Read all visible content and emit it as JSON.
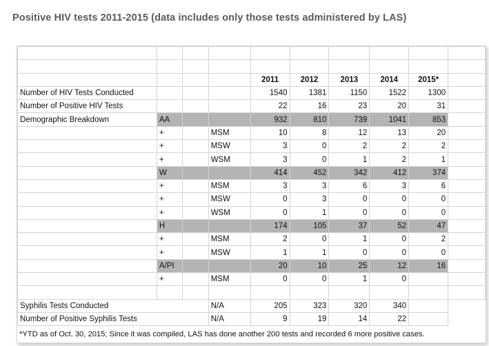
{
  "title": "Positive HIV tests 2011-2015 (data includes only those tests administered by LAS)",
  "years": [
    "2011",
    "2012",
    "2013",
    "2014",
    "2015*"
  ],
  "rows": [
    {
      "label": "Number of HIV Tests Conducted",
      "values": [
        "1540",
        "1381",
        "1150",
        "1522",
        "1300"
      ]
    },
    {
      "label": "Number of Positive HIV Tests",
      "values": [
        "22",
        "16",
        "23",
        "20",
        "31"
      ]
    },
    {
      "label": "Demographic Breakdown",
      "group": "AA",
      "values": [
        "932",
        "810",
        "739",
        "1041",
        "853"
      ]
    },
    {
      "plus": "+",
      "sub": "MSM",
      "values": [
        "10",
        "8",
        "12",
        "13",
        "20"
      ]
    },
    {
      "plus": "+",
      "sub": "MSW",
      "values": [
        "3",
        "0",
        "2",
        "2",
        "2"
      ]
    },
    {
      "plus": "+",
      "sub": "WSM",
      "values": [
        "3",
        "0",
        "1",
        "2",
        "1"
      ]
    },
    {
      "group": "W",
      "values": [
        "414",
        "452",
        "342",
        "412",
        "374"
      ]
    },
    {
      "plus": "+",
      "sub": "MSM",
      "values": [
        "3",
        "3",
        "6",
        "3",
        "6"
      ]
    },
    {
      "plus": "+",
      "sub": "MSW",
      "values": [
        "0",
        "3",
        "0",
        "0",
        "0"
      ]
    },
    {
      "plus": "+",
      "sub": "WSM",
      "values": [
        "0",
        "1",
        "0",
        "0",
        "0"
      ]
    },
    {
      "group": "H",
      "values": [
        "174",
        "105",
        "37",
        "52",
        "47"
      ]
    },
    {
      "plus": "+",
      "sub": "MSM",
      "values": [
        "2",
        "0",
        "1",
        "0",
        "2"
      ]
    },
    {
      "plus": "+",
      "sub": "MSW",
      "values": [
        "1",
        "1",
        "0",
        "0",
        "0"
      ]
    },
    {
      "group": "A/PI",
      "values": [
        "20",
        "10",
        "25",
        "12",
        "16"
      ]
    },
    {
      "plus": "+",
      "sub": "MSM",
      "values": [
        "0",
        "0",
        "1",
        "0",
        ""
      ]
    }
  ],
  "syphilis_rows": [
    {
      "label": "Syphilis Tests Conducted",
      "sub": "N/A",
      "values": [
        "205",
        "323",
        "320",
        "340"
      ]
    },
    {
      "label": "Number of Positive Syphilis Tests",
      "sub": "N/A",
      "values": [
        "9",
        "19",
        "14",
        "22"
      ]
    }
  ],
  "footnote": "*YTD as of Oct. 30, 2015; Since it was compiled, LAS has done another 200 tests and recorded 6 more positive cases."
}
